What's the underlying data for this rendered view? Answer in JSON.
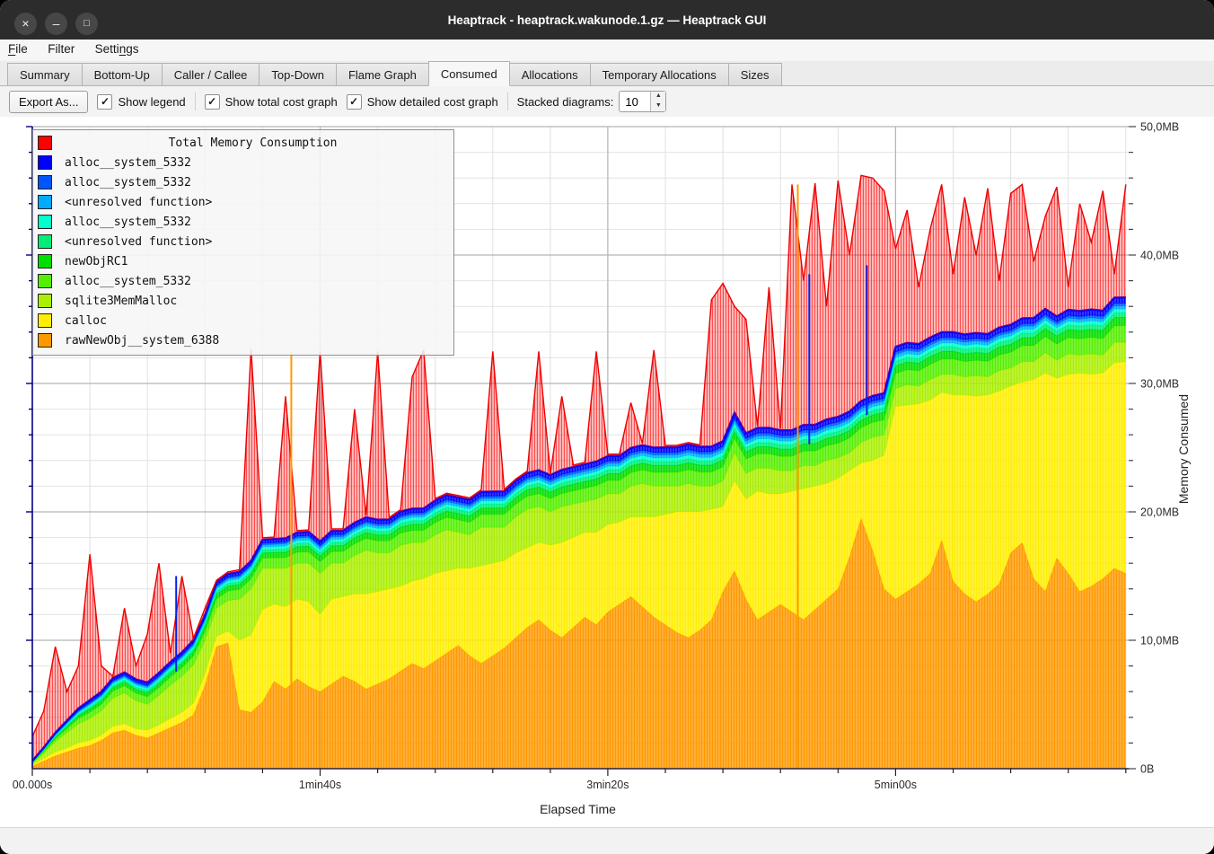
{
  "window": {
    "title": "Heaptrack - heaptrack.wakunode.1.gz — Heaptrack GUI"
  },
  "icons": {
    "close_glyph": "×",
    "minimize_glyph": "–",
    "maximize_glyph": "□",
    "check_glyph": "✓",
    "spin_up_glyph": "▲",
    "spin_down_glyph": "▼"
  },
  "menubar": {
    "items": [
      {
        "pre": "",
        "m": "F",
        "suf": "ile"
      },
      {
        "pre": "Filter",
        "m": "",
        "suf": ""
      },
      {
        "pre": "Setti",
        "m": "n",
        "suf": "gs"
      }
    ]
  },
  "tabs": {
    "active": "Consumed",
    "items": [
      {
        "label": "Summary"
      },
      {
        "label": "Bottom-Up"
      },
      {
        "label": "Caller / Callee"
      },
      {
        "label": "Top-Down"
      },
      {
        "label": "Flame Graph"
      },
      {
        "label": "Consumed"
      },
      {
        "label": "Allocations"
      },
      {
        "label": "Temporary Allocations"
      },
      {
        "label": "Sizes"
      }
    ]
  },
  "toolbar": {
    "export_label": "Export As...",
    "checkboxes": [
      {
        "label": "Show legend",
        "checked": true
      },
      {
        "label": "Show total cost graph",
        "checked": true
      },
      {
        "label": "Show detailed cost graph",
        "checked": true
      }
    ],
    "stacked_label": "Stacked diagrams:",
    "stacked_value": "10"
  },
  "chart_data": {
    "type": "area",
    "title": "Total Memory Consumption",
    "xlabel": "Elapsed Time",
    "ylabel": "Memory Consumed",
    "xlim": [
      0,
      381
    ],
    "ylim_mb": [
      0,
      50
    ],
    "grid": true,
    "legend_position": "top-left",
    "x_ticks": [
      {
        "t": 0,
        "label": "00.000s"
      },
      {
        "t": 100,
        "label": "1min40s"
      },
      {
        "t": 200,
        "label": "3min20s"
      },
      {
        "t": 300,
        "label": "5min00s"
      }
    ],
    "x_minor_step": 20,
    "y_ticks": [
      {
        "mb": 50,
        "label": "50,0MB"
      },
      {
        "mb": 40,
        "label": "40,0MB"
      },
      {
        "mb": 30,
        "label": "30,0MB"
      },
      {
        "mb": 20,
        "label": "20,0MB"
      },
      {
        "mb": 10,
        "label": "10,0MB"
      },
      {
        "mb": 0,
        "label": "0B"
      }
    ],
    "y_minor_step": 2,
    "legend": [
      {
        "label": "Total Memory Consumption",
        "color": "#ff0000"
      },
      {
        "label": "alloc__system_5332",
        "color": "#0000ff"
      },
      {
        "label": "alloc__system_5332",
        "color": "#0055ff"
      },
      {
        "label": "<unresolved function>",
        "color": "#00aaff"
      },
      {
        "label": "alloc__system_5332",
        "color": "#00ffcc"
      },
      {
        "label": "<unresolved function>",
        "color": "#00ee77"
      },
      {
        "label": "newObjRC1",
        "color": "#00dd00"
      },
      {
        "label": "alloc__system_5332",
        "color": "#55ee00"
      },
      {
        "label": "sqlite3MemMalloc",
        "color": "#aaee00"
      },
      {
        "label": "calloc",
        "color": "#ffee00"
      },
      {
        "label": "rawNewObj__system_6388",
        "color": "#ff9900"
      }
    ],
    "n_points": 96,
    "t_step": 4,
    "unit": "MB",
    "series": [
      {
        "name": "rawNewObj__system_6388",
        "color": "#ff9900",
        "values": [
          0.2,
          0.6,
          1.0,
          1.3,
          1.6,
          1.8,
          2.2,
          2.8,
          3.0,
          2.6,
          2.4,
          2.8,
          3.2,
          3.6,
          4.2,
          6.5,
          9.5,
          9.8,
          4.6,
          4.4,
          5.2,
          6.8,
          6.2,
          7.0,
          6.4,
          6.0,
          6.6,
          7.2,
          6.8,
          6.2,
          6.6,
          7.0,
          7.6,
          8.2,
          7.8,
          8.4,
          9.0,
          9.6,
          8.8,
          8.2,
          8.8,
          9.4,
          10.2,
          11.0,
          11.6,
          10.8,
          10.2,
          11.0,
          11.8,
          11.2,
          12.2,
          12.8,
          13.4,
          12.6,
          11.8,
          11.2,
          10.6,
          10.2,
          10.8,
          11.6,
          13.8,
          15.4,
          13.2,
          11.6,
          12.2,
          12.8,
          12.2,
          11.6,
          12.4,
          13.2,
          14.0,
          16.5,
          19.5,
          17.0,
          14.0,
          13.2,
          13.8,
          14.4,
          15.2,
          17.8,
          14.6,
          13.6,
          13.0,
          13.6,
          14.4,
          16.8,
          17.6,
          14.8,
          13.8,
          16.4,
          15.2,
          13.8,
          14.2,
          14.8,
          15.6,
          15.2
        ]
      },
      {
        "name": "calloc",
        "color": "#ffee00",
        "values": [
          0.1,
          0.2,
          0.3,
          0.3,
          0.4,
          0.4,
          0.4,
          0.5,
          0.5,
          0.5,
          0.6,
          0.6,
          0.7,
          0.8,
          0.9,
          0.9,
          0.8,
          0.9,
          5.4,
          6.0,
          7.2,
          6.0,
          6.4,
          6.2,
          6.6,
          6.0,
          6.6,
          6.2,
          6.8,
          7.4,
          7.2,
          7.0,
          6.6,
          6.4,
          7.0,
          6.8,
          6.4,
          6.0,
          6.8,
          7.6,
          7.2,
          6.8,
          6.6,
          6.2,
          6.0,
          6.6,
          7.4,
          7.0,
          6.6,
          7.2,
          6.8,
          6.4,
          6.2,
          7.0,
          7.8,
          8.6,
          9.4,
          9.8,
          9.2,
          8.6,
          6.6,
          7.0,
          7.8,
          10.0,
          9.2,
          8.6,
          9.4,
          10.2,
          9.6,
          9.0,
          8.6,
          6.7,
          4.3,
          7.0,
          10.4,
          15.0,
          14.5,
          14.0,
          13.5,
          11.5,
          14.5,
          15.5,
          16.0,
          15.5,
          15.0,
          13.0,
          12.5,
          15.5,
          17.0,
          14.0,
          15.5,
          17.0,
          16.5,
          16.0,
          16.0,
          16.5
        ]
      },
      {
        "name": "sqlite3MemMalloc",
        "color": "#aaee00",
        "values": [
          0.1,
          0.4,
          0.8,
          1.2,
          1.5,
          1.7,
          1.9,
          2.2,
          2.4,
          2.2,
          2.0,
          2.3,
          2.6,
          2.8,
          3.0,
          2.6,
          2.2,
          2.4,
          3.2,
          3.6,
          3.2,
          2.8,
          3.0,
          2.8,
          3.0,
          3.2,
          2.8,
          2.6,
          3.0,
          3.4,
          3.0,
          2.8,
          3.2,
          3.0,
          2.8,
          3.0,
          3.2,
          2.8,
          2.6,
          3.0,
          2.8,
          2.6,
          2.8,
          3.0,
          2.8,
          2.6,
          2.8,
          2.6,
          2.4,
          2.6,
          2.4,
          2.2,
          2.4,
          2.6,
          2.4,
          2.2,
          2.0,
          2.2,
          2.0,
          1.8,
          2.0,
          2.2,
          2.0,
          1.8,
          2.0,
          1.8,
          1.6,
          1.8,
          1.6,
          1.8,
          1.6,
          1.4,
          1.6,
          1.8,
          1.6,
          1.4,
          1.6,
          1.4,
          1.6,
          1.4,
          1.6,
          1.4,
          1.6,
          1.4,
          1.6,
          1.4,
          1.6,
          1.4,
          1.6,
          1.4,
          1.6,
          1.4,
          1.6,
          1.4,
          1.6,
          1.5
        ]
      },
      {
        "name": "alloc__system_5332",
        "color": "#55ee00",
        "kt": [
          0,
          20,
          60,
          100,
          160,
          240,
          320,
          380
        ],
        "kv": [
          0.05,
          0.5,
          0.7,
          0.9,
          1.0,
          1.1,
          1.2,
          1.3
        ]
      },
      {
        "name": "newObjRC1",
        "color": "#00dd00",
        "kt": [
          0,
          20,
          60,
          100,
          160,
          240,
          320,
          380
        ],
        "kv": [
          0.03,
          0.25,
          0.35,
          0.45,
          0.5,
          0.55,
          0.6,
          0.65
        ]
      },
      {
        "name": "<unresolved function>",
        "color": "#00ee77",
        "kt": [
          0,
          20,
          60,
          100,
          160,
          240,
          320,
          380
        ],
        "kv": [
          0.02,
          0.15,
          0.2,
          0.25,
          0.3,
          0.3,
          0.35,
          0.35
        ]
      },
      {
        "name": "alloc__system_5332",
        "color": "#00ffcc",
        "kt": [
          0,
          20,
          60,
          100,
          160,
          240,
          320,
          380
        ],
        "kv": [
          0.02,
          0.15,
          0.2,
          0.25,
          0.25,
          0.3,
          0.3,
          0.3
        ]
      },
      {
        "name": "<unresolved function>",
        "color": "#00aaff",
        "kt": [
          0,
          20,
          60,
          100,
          160,
          240,
          320,
          380
        ],
        "kv": [
          0.02,
          0.1,
          0.15,
          0.2,
          0.2,
          0.25,
          0.25,
          0.25
        ]
      },
      {
        "name": "alloc__system_5332",
        "color": "#0055ff",
        "kt": [
          0,
          20,
          60,
          100,
          160,
          240,
          320,
          380
        ],
        "kv": [
          0.02,
          0.1,
          0.12,
          0.15,
          0.18,
          0.2,
          0.2,
          0.2
        ]
      },
      {
        "name": "alloc__system_5332",
        "color": "#0000ff",
        "kt": [
          0,
          20,
          60,
          100,
          160,
          240,
          320,
          380
        ],
        "kv": [
          0.05,
          0.2,
          0.25,
          0.3,
          0.35,
          0.4,
          0.4,
          0.45
        ]
      }
    ],
    "total": {
      "name": "Total Memory Consumption",
      "color": "#ff0000",
      "values": [
        2.5,
        4.5,
        9.5,
        6.0,
        8.0,
        16.7,
        8.0,
        7.0,
        12.5,
        8.0,
        10.5,
        16.0,
        9.0,
        15.0,
        10.0,
        12.5,
        13.5,
        14.5,
        15.5,
        32.7,
        16.0,
        14.0,
        29.0,
        15.5,
        16.5,
        32.5,
        18.0,
        17.5,
        28.0,
        18.0,
        32.5,
        18.5,
        19.0,
        30.5,
        32.6,
        19.5,
        20.0,
        19.0,
        20.5,
        19.5,
        32.5,
        20.0,
        21.0,
        22.0,
        32.5,
        21.5,
        29.0,
        22.0,
        23.0,
        32.5,
        23.0,
        23.5,
        28.5,
        24.0,
        32.6,
        23.5,
        23.0,
        24.5,
        23.0,
        36.5,
        37.8,
        36.0,
        35.0,
        24.0,
        37.5,
        25.5,
        45.5,
        38.0,
        45.6,
        36.0,
        45.8,
        40.0,
        46.2,
        46.0,
        45.0,
        40.5,
        43.5,
        37.5,
        42.0,
        45.5,
        38.5,
        44.5,
        40.0,
        45.2,
        38.0,
        44.8,
        45.5,
        39.5,
        43.0,
        45.3,
        37.5,
        44.0,
        41.0,
        45.0,
        38.5,
        45.5
      ]
    },
    "event_spikes": {
      "orange": [
        {
          "t": 90,
          "mb": 32.5
        },
        {
          "t": 266,
          "mb": 45.5
        }
      ],
      "blue": [
        {
          "t": 50,
          "mb": 15.0
        },
        {
          "t": 270,
          "mb": 38.5
        },
        {
          "t": 290,
          "mb": 39.2
        }
      ]
    }
  }
}
